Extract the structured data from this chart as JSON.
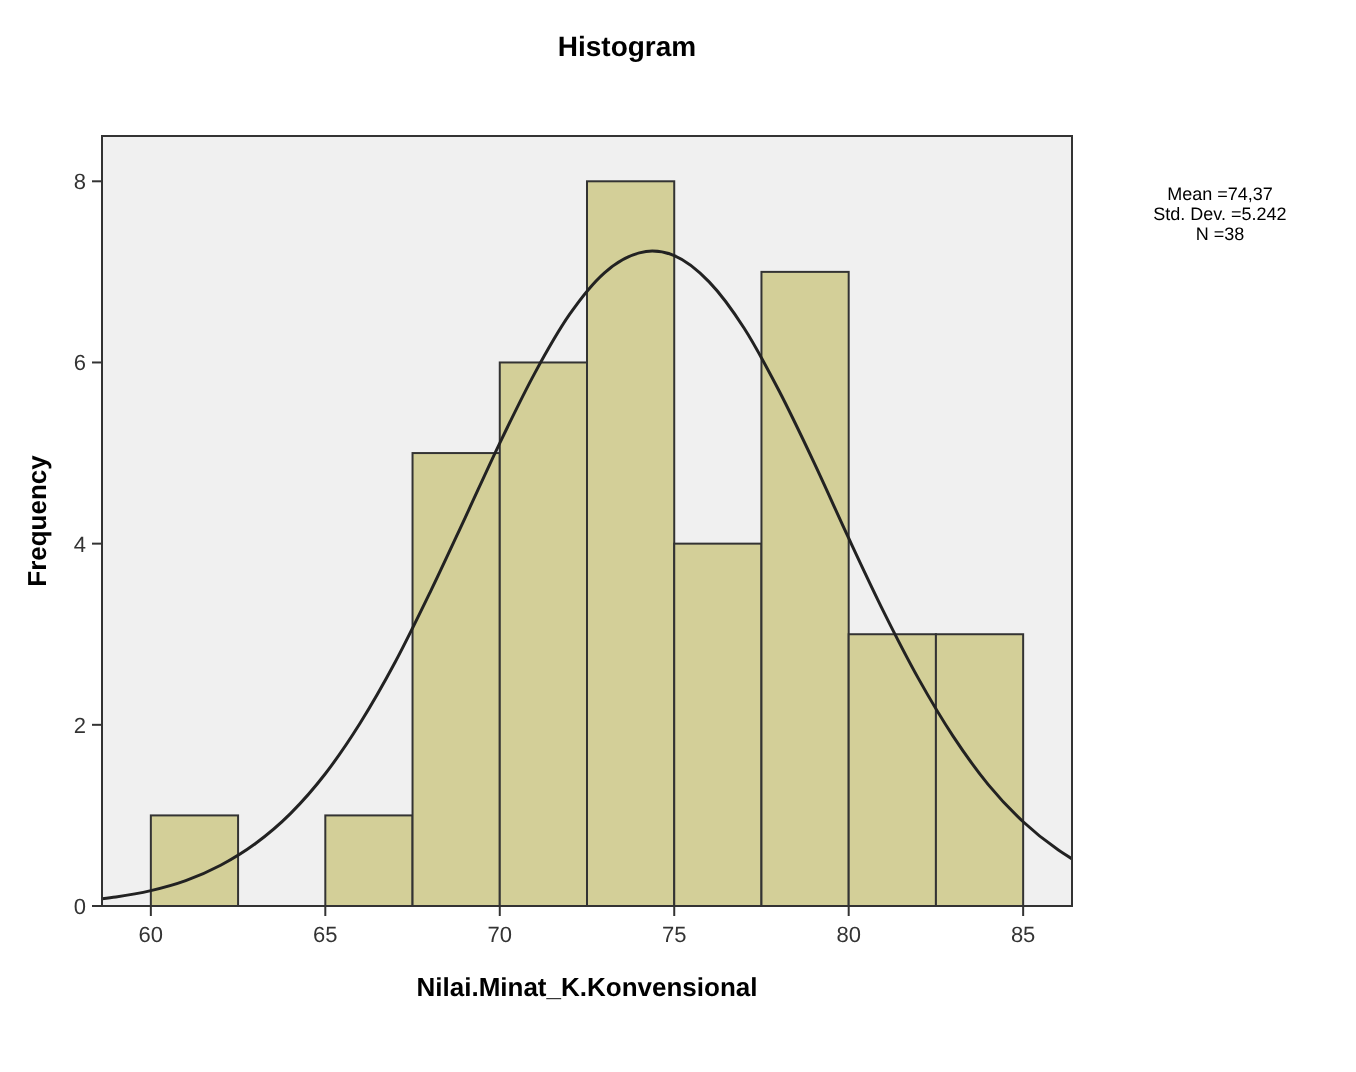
{
  "chart_data": {
    "type": "histogram",
    "title": "Histogram",
    "xlabel": "Nilai.Minat_K.Konvensional",
    "ylabel": "Frequency",
    "bins": [
      60,
      62.5,
      65,
      67.5,
      70,
      72.5,
      75,
      77.5,
      80,
      82.5,
      85
    ],
    "values": [
      1,
      0,
      1,
      5,
      6,
      8,
      4,
      7,
      3,
      3
    ],
    "color": "#d3cf98",
    "xlim": [
      58.6,
      86.4
    ],
    "xticks": [
      60,
      65,
      70,
      75,
      80,
      85
    ],
    "ylim": [
      0,
      8.5
    ],
    "yticks": [
      0,
      2,
      4,
      6,
      8
    ],
    "series": [
      {
        "type": "line",
        "color": "#222222",
        "x": [
          58.6,
          59,
          60,
          61,
          62,
          63,
          64,
          65,
          66,
          67,
          68,
          69,
          70,
          71,
          72,
          73,
          74,
          74.37,
          75,
          76,
          77,
          78,
          79,
          80,
          81,
          82,
          83,
          84,
          85,
          86,
          86.4
        ],
        "values": [
          0.08,
          0.1,
          0.17,
          0.28,
          0.45,
          0.69,
          1.02,
          1.46,
          2.02,
          2.69,
          3.46,
          4.28,
          5.11,
          5.88,
          6.53,
          6.99,
          7.21,
          7.23,
          7.18,
          6.89,
          6.38,
          5.69,
          4.9,
          4.06,
          3.25,
          2.51,
          1.87,
          1.34,
          0.93,
          0.62,
          0.52
        ]
      }
    ],
    "annotations": [
      "Mean =74,37",
      "Std. Dev. =5.242",
      "N =38"
    ]
  }
}
